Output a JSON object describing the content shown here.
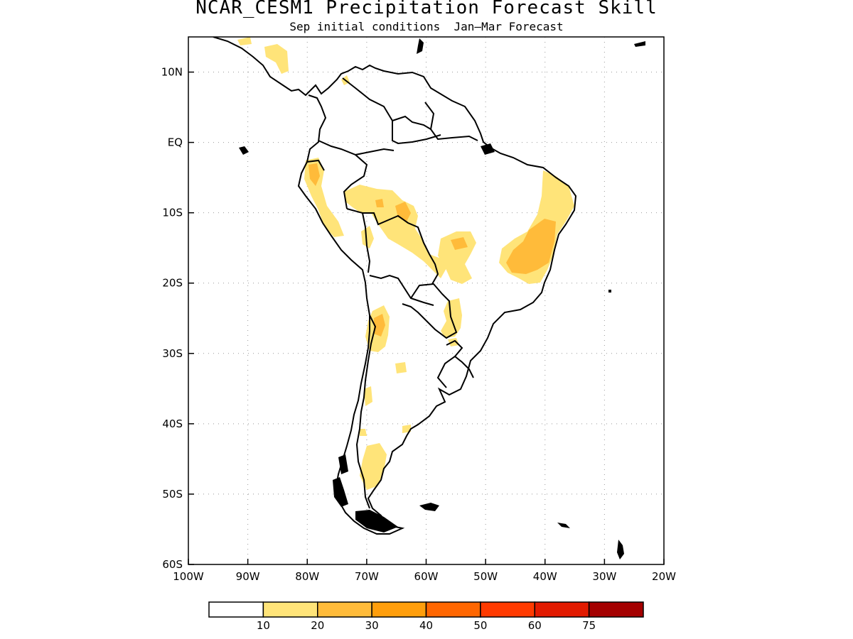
{
  "title": "NCAR_CESM1 Precipitation Forecast Skill",
  "subtitle": "Sep initial conditions  Jan—Mar Forecast",
  "map": {
    "region": "South America",
    "lon_range": [
      -100,
      -20
    ],
    "lat_range": [
      -60,
      15
    ],
    "lat_labels": [
      {
        "lat": 10,
        "text": "10N"
      },
      {
        "lat": 0,
        "text": "EQ"
      },
      {
        "lat": -10,
        "text": "10S"
      },
      {
        "lat": -20,
        "text": "20S"
      },
      {
        "lat": -30,
        "text": "30S"
      },
      {
        "lat": -40,
        "text": "40S"
      },
      {
        "lat": -50,
        "text": "50S"
      },
      {
        "lat": -60,
        "text": "60S"
      }
    ],
    "lon_labels": [
      {
        "lon": -100,
        "text": "100W"
      },
      {
        "lon": -90,
        "text": "90W"
      },
      {
        "lon": -80,
        "text": "80W"
      },
      {
        "lon": -70,
        "text": "70W"
      },
      {
        "lon": -60,
        "text": "60W"
      },
      {
        "lon": -50,
        "text": "50W"
      },
      {
        "lon": -40,
        "text": "40W"
      },
      {
        "lon": -30,
        "text": "30W"
      },
      {
        "lon": -20,
        "text": "20W"
      }
    ],
    "grid": "dotted"
  },
  "colorbar": {
    "colors": [
      "#ffffff",
      "#ffe479",
      "#ffbb3a",
      "#ff9e0c",
      "#ff6600",
      "#ff3a00",
      "#e21a00",
      "#a40000"
    ],
    "labels": [
      "10",
      "20",
      "30",
      "40",
      "50",
      "60",
      "75"
    ]
  },
  "skill_regions": [
    {
      "name": "central-america",
      "level": 1
    },
    {
      "name": "ecuador-peru-north",
      "level": 2
    },
    {
      "name": "peru-coast",
      "level": 1
    },
    {
      "name": "western-amazon",
      "level": 1
    },
    {
      "name": "acre-rondonia",
      "level": 2
    },
    {
      "name": "mato-grosso",
      "level": 1
    },
    {
      "name": "eastern-brazil",
      "level": 1
    },
    {
      "name": "bahia",
      "level": 2
    },
    {
      "name": "nw-argentina",
      "level": 1
    },
    {
      "name": "paraguay-brazil",
      "level": 1
    },
    {
      "name": "central-argentina",
      "level": 1
    },
    {
      "name": "patagonia",
      "level": 1
    }
  ]
}
